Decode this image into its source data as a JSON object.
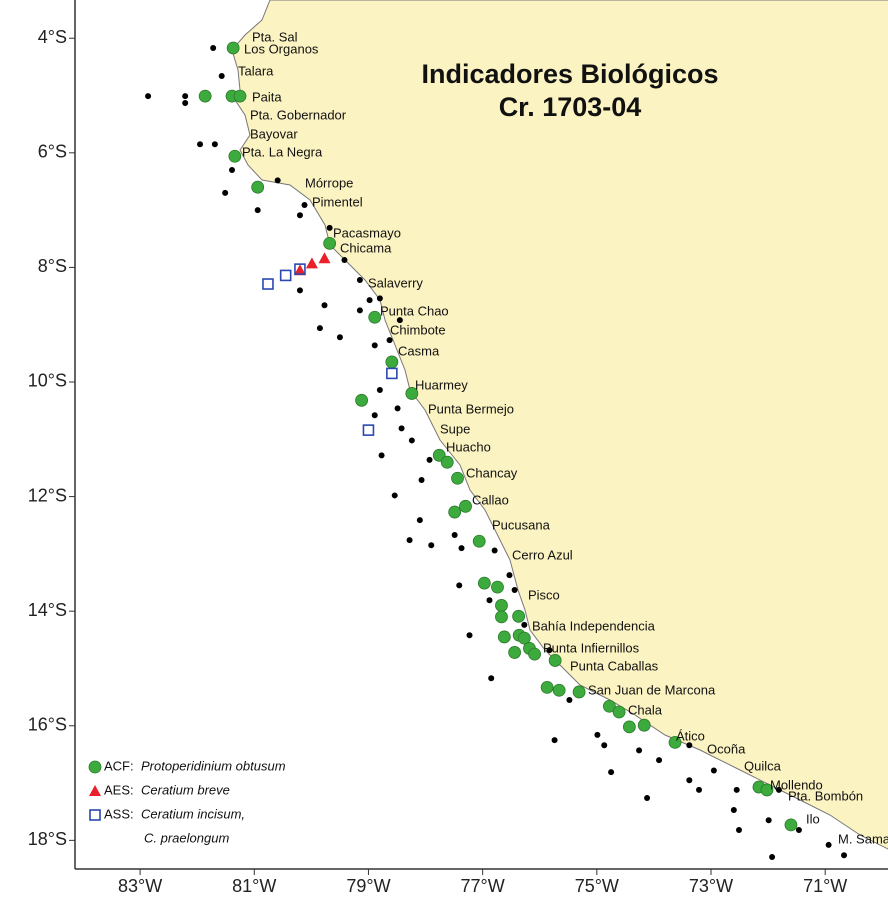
{
  "map": {
    "title": [
      "Indicadores Biológicos",
      "Cr. 1703-04"
    ],
    "xlim": [
      -84.14,
      -69.9
    ],
    "ylim": [
      -18.5,
      -3.42
    ],
    "xticks": [
      {
        "value": -83,
        "label": "83°W"
      },
      {
        "value": -81,
        "label": "81°W"
      },
      {
        "value": -79,
        "label": "79°W"
      },
      {
        "value": -77,
        "label": "77°W"
      },
      {
        "value": -75,
        "label": "75°W"
      },
      {
        "value": -73,
        "label": "73°W"
      },
      {
        "value": -71,
        "label": "71°W"
      }
    ],
    "yticks": [
      {
        "value": -4,
        "label": "4°S"
      },
      {
        "value": -6,
        "label": "6°S"
      },
      {
        "value": -8,
        "label": "8°S"
      },
      {
        "value": -10,
        "label": "10°S"
      },
      {
        "value": -12,
        "label": "12°S"
      },
      {
        "value": -14,
        "label": "14°S"
      },
      {
        "value": -16,
        "label": "16°S"
      },
      {
        "value": -18,
        "label": "18°S"
      }
    ],
    "stations": {
      "color": "#000000",
      "lon": [
        -81.72,
        -82.86,
        -82.21,
        -82.21,
        -81.57,
        -81.95,
        -81.69,
        -81.39,
        -81.51,
        -80.94,
        -80.59,
        -80.12,
        -80.2,
        -79.68,
        -79.42,
        -79.15,
        -78.8,
        -78.98,
        -78.45,
        -79.15,
        -79.77,
        -79.5,
        -79.85,
        -80.2,
        -78.63,
        -78.89,
        -78.8,
        -78.49,
        -78.89,
        -78.42,
        -78.24,
        -77.93,
        -78.07,
        -78.77,
        -78.54,
        -78.1,
        -77.9,
        -78.28,
        -77.49,
        -77.37,
        -76.79,
        -76.53,
        -76.44,
        -77.41,
        -77.23,
        -76.88,
        -76.27,
        -76.85,
        -75.83,
        -75.48,
        -74.99,
        -75.74,
        -74.87,
        -74.26,
        -73.91,
        -73.38,
        -73.38,
        -73.21,
        -72.6,
        -72.55,
        -71.99,
        -71.81,
        -71.46,
        -70.94,
        -70.67,
        -71.93,
        -72.51,
        -74.12,
        -74.75,
        -72.95
      ],
      "lat": [
        -4.17,
        -5.01,
        -5.01,
        -5.13,
        -4.66,
        -5.85,
        -5.85,
        -6.3,
        -6.7,
        -7.0,
        -6.48,
        -6.91,
        -7.09,
        -7.31,
        -7.87,
        -8.22,
        -8.54,
        -8.57,
        -8.92,
        -8.75,
        -8.66,
        -9.22,
        -9.06,
        -8.4,
        -9.27,
        -9.36,
        -10.14,
        -10.46,
        -10.58,
        -10.81,
        -11.02,
        -11.36,
        -11.71,
        -11.28,
        -11.98,
        -12.41,
        -12.85,
        -12.76,
        -12.67,
        -12.9,
        -12.94,
        -13.37,
        -13.63,
        -13.55,
        -14.42,
        -13.81,
        -14.24,
        -15.17,
        -14.68,
        -15.55,
        -16.16,
        -16.25,
        -16.34,
        -16.43,
        -16.6,
        -16.34,
        -16.95,
        -17.12,
        -17.47,
        -17.12,
        -17.65,
        -17.12,
        -17.82,
        -18.08,
        -18.26,
        -18.29,
        -17.82,
        -17.26,
        -16.81,
        -16.78
      ]
    },
    "series": [
      {
        "code": "ACF:",
        "species": [
          "Protoperidinium obtusum"
        ],
        "marker": "circle",
        "color": "#3daa3d",
        "lon": [
          -81.37,
          -81.86,
          -81.39,
          -81.25,
          -81.34,
          -80.94,
          -79.68,
          -78.89,
          -78.59,
          -79.12,
          -78.24,
          -77.76,
          -77.62,
          -77.44,
          -77.3,
          -77.49,
          -77.06,
          -76.97,
          -76.74,
          -76.67,
          -76.67,
          -76.37,
          -76.62,
          -76.36,
          -76.27,
          -76.18,
          -76.44,
          -76.09,
          -75.73,
          -75.87,
          -75.66,
          -75.31,
          -74.78,
          -74.61,
          -74.43,
          -74.17,
          -73.63,
          -72.16,
          -72.02,
          -71.6
        ],
        "lat": [
          -4.17,
          -5.01,
          -5.01,
          -5.01,
          -6.06,
          -6.6,
          -7.58,
          -8.87,
          -9.65,
          -10.32,
          -10.2,
          -11.28,
          -11.4,
          -11.68,
          -12.17,
          -12.27,
          -12.78,
          -13.51,
          -13.58,
          -13.9,
          -14.1,
          -14.09,
          -14.45,
          -14.42,
          -14.47,
          -14.65,
          -14.72,
          -14.75,
          -14.86,
          -15.33,
          -15.38,
          -15.41,
          -15.66,
          -15.76,
          -16.02,
          -15.99,
          -16.29,
          -17.07,
          -17.12,
          -17.73
        ]
      },
      {
        "code": "AES:",
        "species": [
          "Ceratium breve"
        ],
        "marker": "triangle",
        "color": "#e8202a",
        "lon": [
          -80.2,
          -79.99,
          -79.77
        ],
        "lat": [
          -8.05,
          -7.93,
          -7.84
        ]
      },
      {
        "code": "ASS:",
        "species": [
          "Ceratium incisum,",
          "C. praelongum"
        ],
        "marker": "square",
        "color": "#2a48b0",
        "lon": [
          -80.76,
          -80.45,
          -80.2,
          -78.59,
          -79.0
        ],
        "lat": [
          -8.29,
          -8.14,
          -8.03,
          -9.85,
          -10.84
        ]
      }
    ],
    "places": [
      "Pta. Sal",
      "Los Organos",
      "Talara",
      "Paita",
      "Pta. Gobernador",
      "Bayovar",
      "Pta. La Negra",
      "Mórrope",
      "Pimentel",
      "Pacasmayo",
      "Chicama",
      "Salaverry",
      "Punta Chao",
      "Chimbote",
      "Casma",
      "Huarmey",
      "Punta Bermejo",
      "Supe",
      "Huacho",
      "Chancay",
      "Callao",
      "Pucusana",
      "Cerro Azul",
      "Pisco",
      "Bahía Independencia",
      "Punta Infiernillos",
      "Punta Caballas",
      "San Juan de Marcona",
      "Chala",
      "Ático",
      "Ocoña",
      "Quilca",
      "Mollendo",
      "Pta. Bombón",
      "Ilo",
      "M. Sama"
    ]
  }
}
